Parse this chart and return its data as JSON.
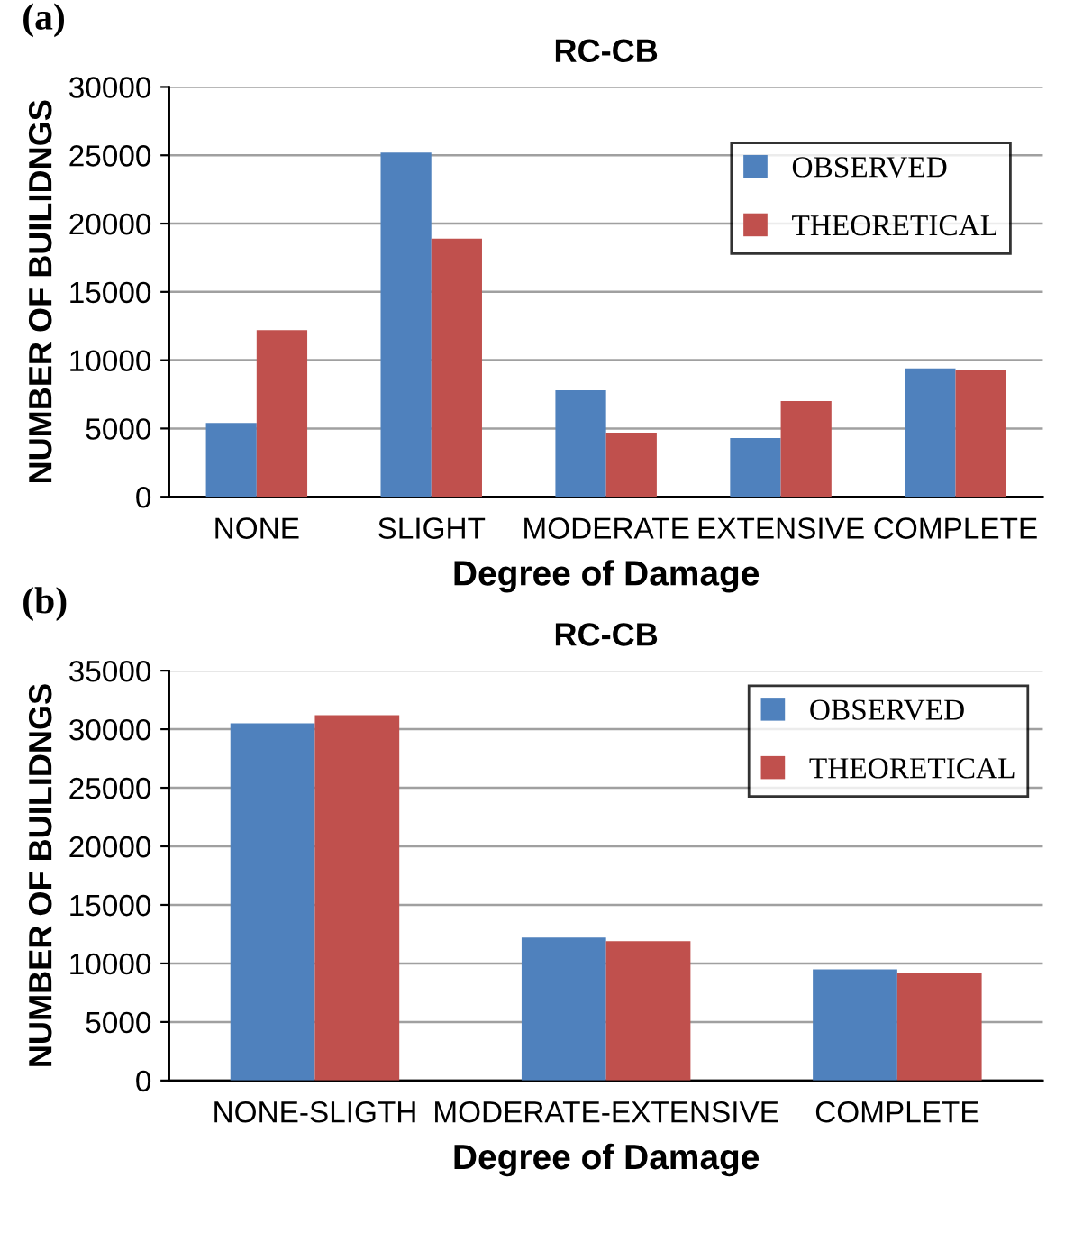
{
  "chart_data": [
    {
      "type": "bar",
      "title": "RC-CB",
      "xlabel": "Degree of Damage",
      "ylabel": "NUMBER OF BUILIDNGS",
      "annotations": [
        "(a)"
      ],
      "categories": [
        "NONE",
        "SLIGHT",
        "MODERATE",
        "EXTENSIVE",
        "COMPLETE"
      ],
      "series": [
        {
          "name": "OBSERVED",
          "color": "#4f81bd",
          "values": [
            5400,
            25200,
            7800,
            4300,
            9400
          ]
        },
        {
          "name": "THEORETICAL",
          "color": "#c0504d",
          "values": [
            12200,
            18900,
            4700,
            7000,
            9300
          ]
        }
      ],
      "ylim": [
        0,
        30000
      ],
      "yticks": [
        0,
        5000,
        10000,
        15000,
        20000,
        25000,
        30000
      ],
      "grid": "y",
      "legend": "top right"
    },
    {
      "type": "bar",
      "title": "RC-CB",
      "xlabel": "Degree of Damage",
      "ylabel": "NUMBER OF BUILIDNGS",
      "annotations": [
        "(b)"
      ],
      "categories": [
        "NONE-SLIGTH",
        "MODERATE-EXTENSIVE",
        "COMPLETE"
      ],
      "series": [
        {
          "name": "OBSERVED",
          "color": "#4f81bd",
          "values": [
            30500,
            12200,
            9500
          ]
        },
        {
          "name": "THEORETICAL",
          "color": "#c0504d",
          "values": [
            31200,
            11900,
            9200
          ]
        }
      ],
      "ylim": [
        0,
        35000
      ],
      "yticks": [
        0,
        5000,
        10000,
        15000,
        20000,
        25000,
        30000,
        35000
      ],
      "grid": "y",
      "legend": "top right"
    }
  ]
}
